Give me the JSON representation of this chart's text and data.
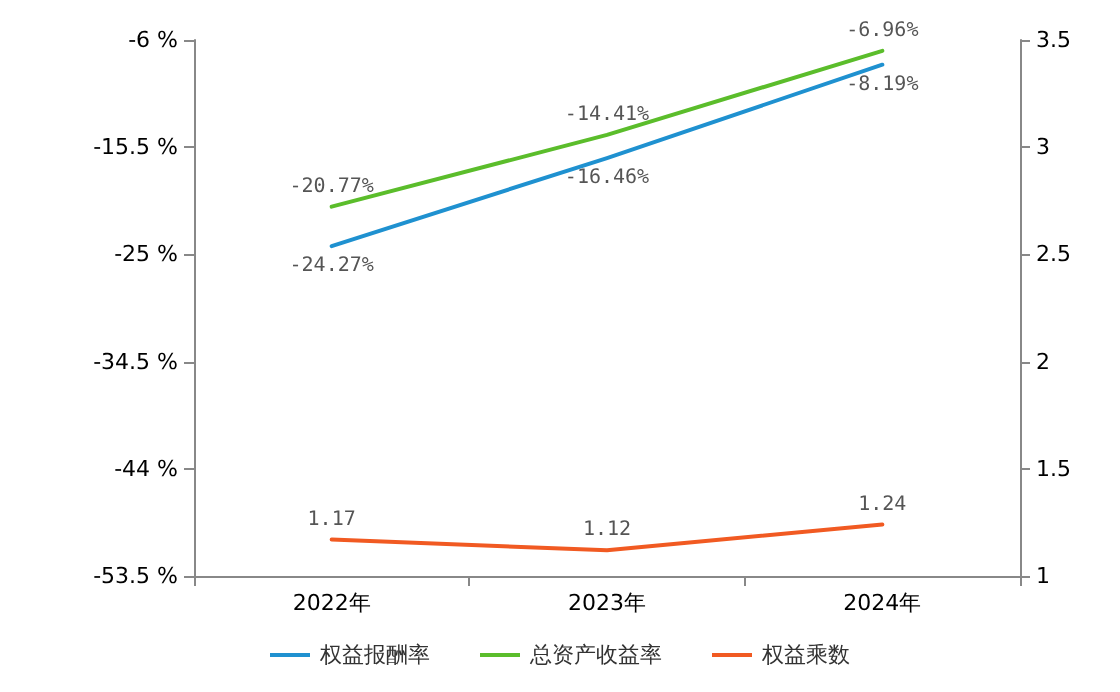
{
  "chart_data": {
    "type": "line",
    "categories": [
      "2022年",
      "2023年",
      "2024年"
    ],
    "series": [
      {
        "name": "权益报酬率",
        "color": "#1f91d0",
        "values": [
          -24.27,
          -16.46,
          -8.19
        ],
        "value_labels": [
          "-24.27%",
          "-16.46%",
          "-8.19%"
        ]
      },
      {
        "name": "总资产收益率",
        "color": "#5bbd2b",
        "values": [
          -20.77,
          -14.41,
          -6.96
        ],
        "value_labels": [
          "-20.77%",
          "-14.41%",
          "-6.96%"
        ]
      },
      {
        "name": "权益乘数",
        "color": "#f15a22",
        "values": [
          1.17,
          1.12,
          1.24
        ],
        "value_labels": [
          "1.17",
          "1.12",
          "1.24"
        ],
        "axis": "y2"
      }
    ],
    "ylim": [
      -53.5,
      -6
    ],
    "yticks": [
      {
        "value": -53.5,
        "label": "-53.5 %"
      },
      {
        "value": -44,
        "label": "-44 %"
      },
      {
        "value": -34.5,
        "label": "-34.5 %"
      },
      {
        "value": -25,
        "label": "-25 %"
      },
      {
        "value": -15.5,
        "label": "-15.5 %"
      },
      {
        "value": -6,
        "label": "-6 %"
      }
    ],
    "y2lim": [
      1,
      3.5
    ],
    "y2ticks": [
      1,
      1.5,
      2,
      2.5,
      3,
      3.5
    ],
    "grid": false,
    "legend": "bottom",
    "marker": "none",
    "line_style": "solid"
  }
}
